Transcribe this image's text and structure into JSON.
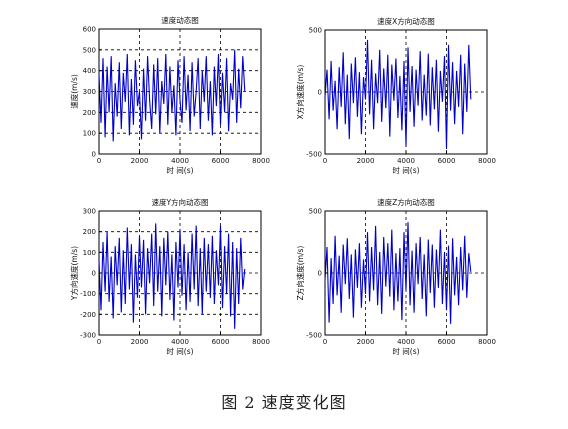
{
  "figure_caption": "图 2  速度变化图",
  "series_color": "#0000cc",
  "chart_data": [
    {
      "type": "line",
      "title": "速度动态图",
      "xlabel": "时 间(s)",
      "ylabel": "速度(m/s)",
      "xlim": [
        0,
        8000
      ],
      "ylim": [
        0,
        600
      ],
      "xticks": [
        0,
        2000,
        4000,
        6000,
        8000
      ],
      "yticks": [
        0,
        100,
        200,
        300,
        400,
        500,
        600
      ],
      "grid_x": [
        2000,
        4000,
        6000
      ],
      "grid_y": [
        100,
        200,
        300,
        400,
        500
      ],
      "grid": "dashed",
      "series": [
        {
          "x": [
            0,
            100,
            200,
            300,
            400,
            500,
            600,
            700,
            800,
            900,
            1000,
            1100,
            1200,
            1300,
            1400,
            1500,
            1600,
            1700,
            1800,
            1900,
            2000,
            2100,
            2200,
            2300,
            2400,
            2500,
            2600,
            2700,
            2800,
            2900,
            3000,
            3100,
            3200,
            3300,
            3400,
            3500,
            3600,
            3700,
            3800,
            3900,
            4000,
            4100,
            4200,
            4300,
            4400,
            4500,
            4600,
            4700,
            4800,
            4900,
            5000,
            5100,
            5200,
            5300,
            5400,
            5500,
            5600,
            5700,
            5800,
            5900,
            6000,
            6100,
            6200,
            6300,
            6400,
            6500,
            6600,
            6700,
            6800,
            6900,
            7000,
            7100,
            7200
          ],
          "y": [
            380,
            150,
            460,
            80,
            420,
            200,
            470,
            60,
            340,
            180,
            440,
            120,
            390,
            250,
            480,
            90,
            360,
            140,
            450,
            230,
            300,
            70,
            410,
            160,
            470,
            260,
            120,
            430,
            190,
            460,
            100,
            350,
            240,
            480,
            140,
            420,
            200,
            330,
            90,
            450,
            260,
            150,
            470,
            210,
            380,
            110,
            440,
            180,
            300,
            460,
            120,
            400,
            250,
            470,
            160,
            350,
            90,
            420,
            230,
            480,
            140,
            390,
            200,
            460,
            110,
            340,
            260,
            500,
            150,
            410,
            220,
            470,
            300
          ]
        }
      ]
    },
    {
      "type": "line",
      "title": "速度X方向动态图",
      "xlabel": "时 间(s)",
      "ylabel": "X方向速度(m/s)",
      "xlim": [
        0,
        8000
      ],
      "ylim": [
        -500,
        500
      ],
      "xticks": [
        0,
        2000,
        4000,
        6000,
        8000
      ],
      "yticks": [
        -500,
        0,
        500
      ],
      "grid_x": [
        2000,
        4000,
        6000
      ],
      "grid_y": [
        0
      ],
      "grid": "dashed",
      "series": [
        {
          "x": [
            0,
            100,
            200,
            300,
            400,
            500,
            600,
            700,
            800,
            900,
            1000,
            1100,
            1200,
            1300,
            1400,
            1500,
            1600,
            1700,
            1800,
            1900,
            2000,
            2100,
            2200,
            2300,
            2400,
            2500,
            2600,
            2700,
            2800,
            2900,
            3000,
            3100,
            3200,
            3300,
            3400,
            3500,
            3600,
            3700,
            3800,
            3900,
            4000,
            4100,
            4200,
            4300,
            4400,
            4500,
            4600,
            4700,
            4800,
            4900,
            5000,
            5100,
            5200,
            5300,
            5400,
            5500,
            5600,
            5700,
            5800,
            5900,
            6000,
            6100,
            6200,
            6300,
            6400,
            6500,
            6600,
            6700,
            6800,
            6900,
            7000,
            7100,
            7200
          ],
          "y": [
            -40,
            180,
            -220,
            250,
            -150,
            90,
            -300,
            200,
            -120,
            320,
            -260,
            140,
            -380,
            230,
            -90,
            280,
            -200,
            160,
            -340,
            120,
            -60,
            420,
            -180,
            260,
            -300,
            150,
            -90,
            340,
            -240,
            190,
            -130,
            300,
            -360,
            220,
            -70,
            270,
            -210,
            130,
            -310,
            250,
            -440,
            360,
            -160,
            210,
            -280,
            180,
            -110,
            330,
            -230,
            140,
            -190,
            310,
            -270,
            200,
            -140,
            260,
            -320,
            170,
            -80,
            290,
            -460,
            380,
            -150,
            240,
            -260,
            170,
            -120,
            300,
            -340,
            230,
            -160,
            380,
            -60
          ]
        }
      ]
    },
    {
      "type": "line",
      "title": "速度Y方向动态图",
      "xlabel": "时 间(s)",
      "ylabel": "Y方向速度(m/s)",
      "xlim": [
        0,
        8000
      ],
      "ylim": [
        -300,
        300
      ],
      "xticks": [
        0,
        2000,
        4000,
        6000,
        8000
      ],
      "yticks": [
        -300,
        -200,
        -100,
        0,
        100,
        200,
        300
      ],
      "grid_x": [
        2000,
        4000,
        6000
      ],
      "grid_y": [
        -200,
        -100,
        0,
        100,
        200
      ],
      "grid": "dashed",
      "series": [
        {
          "x": [
            0,
            100,
            200,
            300,
            400,
            500,
            600,
            700,
            800,
            900,
            1000,
            1100,
            1200,
            1300,
            1400,
            1500,
            1600,
            1700,
            1800,
            1900,
            2000,
            2100,
            2200,
            2300,
            2400,
            2500,
            2600,
            2700,
            2800,
            2900,
            3000,
            3100,
            3200,
            3300,
            3400,
            3500,
            3600,
            3700,
            3800,
            3900,
            4000,
            4100,
            4200,
            4300,
            4400,
            4500,
            4600,
            4700,
            4800,
            4900,
            5000,
            5100,
            5200,
            5300,
            5400,
            5500,
            5600,
            5700,
            5800,
            5900,
            6000,
            6100,
            6200,
            6300,
            6400,
            6500,
            6600,
            6700,
            6800,
            6900,
            7000,
            7100,
            7200
          ],
          "y": [
            60,
            -180,
            150,
            -90,
            200,
            -140,
            80,
            -220,
            130,
            -60,
            170,
            -190,
            110,
            -150,
            220,
            -80,
            140,
            -240,
            90,
            -120,
            180,
            -70,
            160,
            -200,
            120,
            -50,
            190,
            -160,
            240,
            -90,
            130,
            -210,
            170,
            -60,
            200,
            -130,
            90,
            -230,
            150,
            -70,
            210,
            -110,
            140,
            -180,
            100,
            -140,
            190,
            -80,
            230,
            -160,
            120,
            -200,
            170,
            -90,
            140,
            -120,
            180,
            -150,
            110,
            -60,
            230,
            -170,
            130,
            -100,
            190,
            -210,
            150,
            -270,
            120,
            -150,
            170,
            -80,
            20
          ]
        }
      ]
    },
    {
      "type": "line",
      "title": "速度Z方向动态图",
      "xlabel": "时 间(s)",
      "ylabel": "Z方向速度(m/s)",
      "xlim": [
        0,
        8000
      ],
      "ylim": [
        -500,
        500
      ],
      "xticks": [
        0,
        2000,
        4000,
        6000,
        8000
      ],
      "yticks": [
        -500,
        0,
        500
      ],
      "grid_x": [
        2000,
        4000,
        6000
      ],
      "grid_y": [
        0
      ],
      "grid": "dashed",
      "series": [
        {
          "x": [
            0,
            100,
            200,
            300,
            400,
            500,
            600,
            700,
            800,
            900,
            1000,
            1100,
            1200,
            1300,
            1400,
            1500,
            1600,
            1700,
            1800,
            1900,
            2000,
            2100,
            2200,
            2300,
            2400,
            2500,
            2600,
            2700,
            2800,
            2900,
            3000,
            3100,
            3200,
            3300,
            3400,
            3500,
            3600,
            3700,
            3800,
            3900,
            4000,
            4100,
            4200,
            4300,
            4400,
            4500,
            4600,
            4700,
            4800,
            4900,
            5000,
            5100,
            5200,
            5300,
            5400,
            5500,
            5600,
            5700,
            5800,
            5900,
            6000,
            6100,
            6200,
            6300,
            6400,
            6500,
            6600,
            6700,
            6800,
            6900,
            7000,
            7100,
            7200
          ],
          "y": [
            -60,
            210,
            -400,
            120,
            -250,
            300,
            -180,
            140,
            -320,
            230,
            -90,
            280,
            -210,
            150,
            -360,
            190,
            -120,
            240,
            -280,
            110,
            -170,
            330,
            -230,
            210,
            -140,
            380,
            -260,
            170,
            -330,
            290,
            -110,
            240,
            -190,
            350,
            -300,
            160,
            -230,
            200,
            -380,
            330,
            -140,
            410,
            -260,
            180,
            -320,
            240,
            -90,
            290,
            -210,
            150,
            -350,
            270,
            -160,
            230,
            -280,
            190,
            -120,
            350,
            -250,
            170,
            -300,
            220,
            -410,
            280,
            -180,
            130,
            -260,
            210,
            -140,
            300,
            -200,
            160,
            10
          ]
        }
      ]
    }
  ]
}
